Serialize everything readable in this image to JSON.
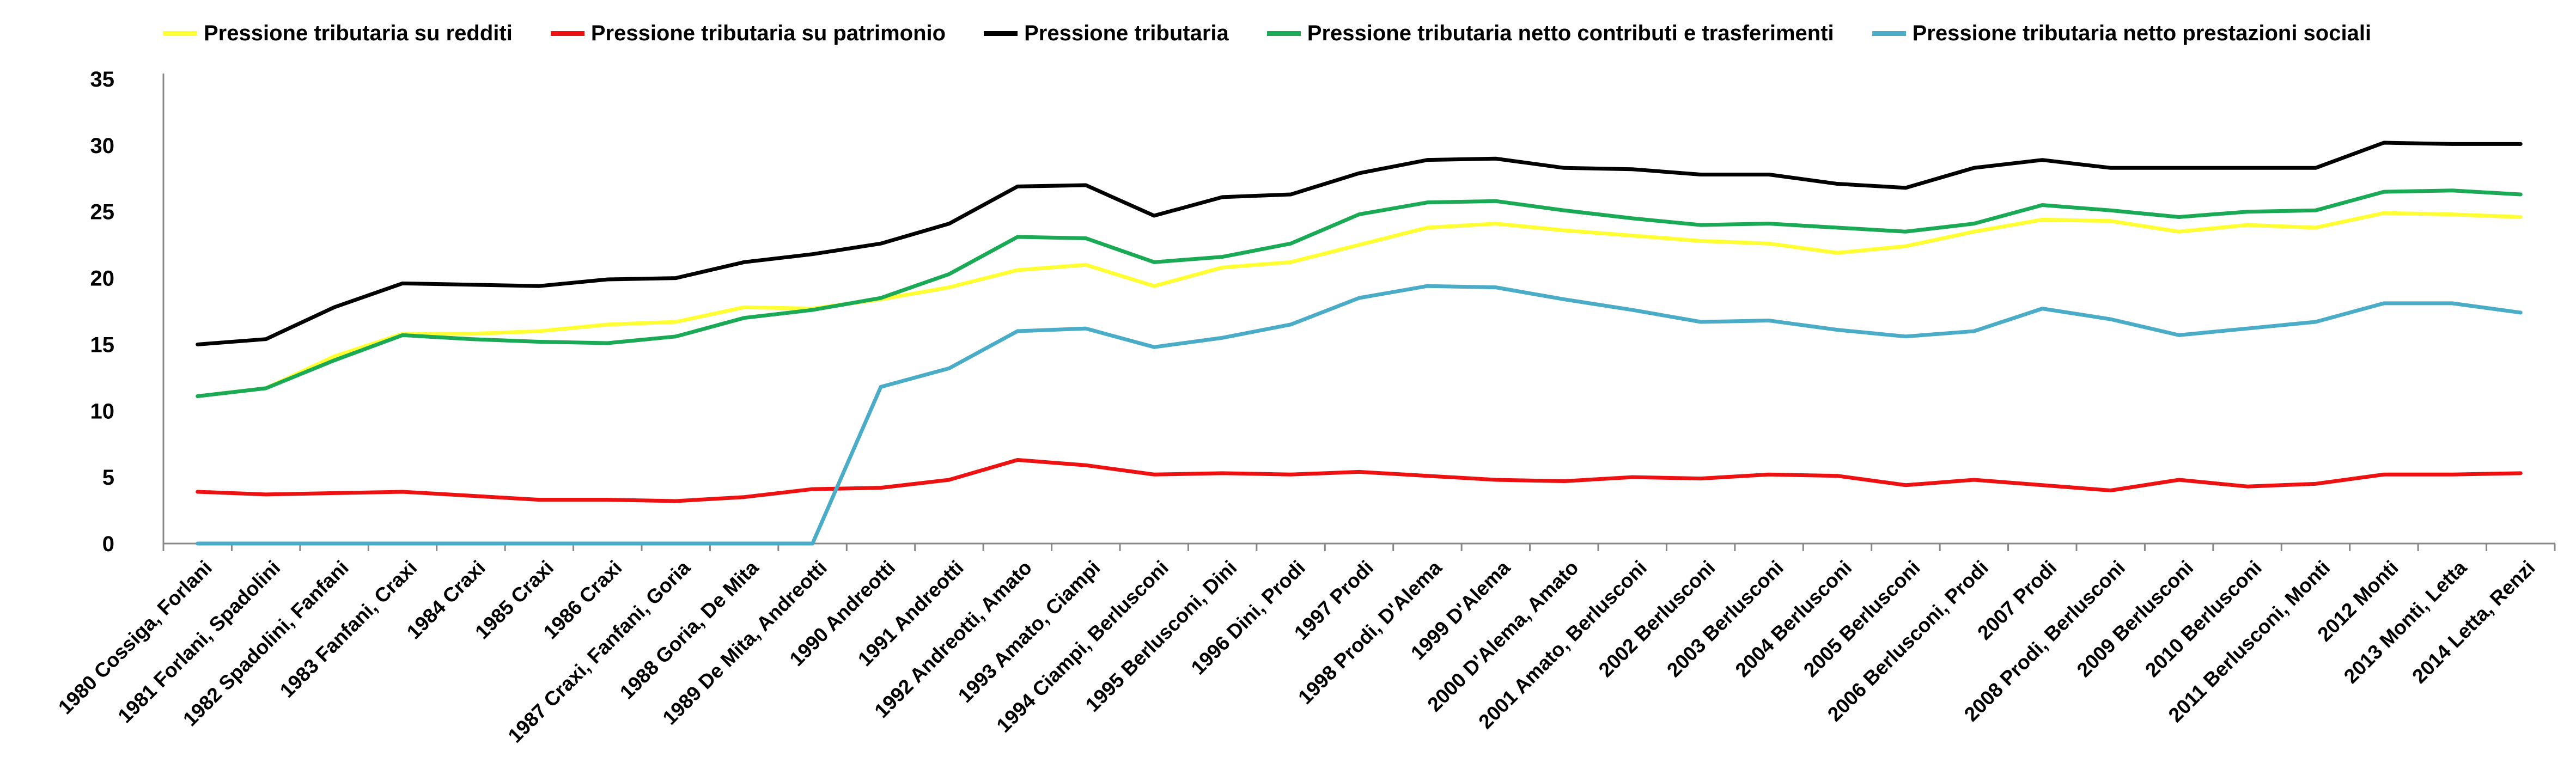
{
  "chart_data": {
    "type": "line",
    "title": "",
    "xlabel": "",
    "ylabel": "",
    "ylim": [
      0,
      35
    ],
    "yticks": [
      0,
      5,
      10,
      15,
      20,
      25,
      30,
      35
    ],
    "grid": false,
    "legend_position": "top",
    "categories": [
      "1980 Cossiga, Forlani",
      "1981 Forlani, Spadolini",
      "1982 Spadolini, Fanfani",
      "1983 Fanfani, Craxi",
      "1984 Craxi",
      "1985 Craxi",
      "1986 Craxi",
      "1987 Craxi, Fanfani, Goria",
      "1988 Goria, De Mita",
      "1989 De Mita, Andreotti",
      "1990 Andreotti",
      "1991 Andreotti",
      "1992 Andreotti, Amato",
      "1993 Amato, Ciampi",
      "1994 Ciampi, Berlusconi",
      "1995 Berlusconi, Dini",
      "1996 Dini, Prodi",
      "1997 Prodi",
      "1998 Prodi, D'Alema",
      "1999 D'Alema",
      "2000 D'Alema, Amato",
      "2001 Amato, Berlusconi",
      "2002 Berlusconi",
      "2003 Berlusconi",
      "2004 Berlusconi",
      "2005 Berlusconi",
      "2006 Berlusconi, Prodi",
      "2007 Prodi",
      "2008 Prodi, Berlusconi",
      "2009 Berlusconi",
      "2010 Berlusconi",
      "2011 Berlusconi, Monti",
      "2012 Monti",
      "2013 Monti, Letta",
      "2014 Letta, Renzi"
    ],
    "series": [
      {
        "name": "Pressione tributaria su redditi",
        "color": "#ffff33",
        "values": [
          11.1,
          11.7,
          14.1,
          15.8,
          15.8,
          16.0,
          16.5,
          16.7,
          17.8,
          17.7,
          18.4,
          19.3,
          20.6,
          21.0,
          19.4,
          20.8,
          21.2,
          22.5,
          23.8,
          24.1,
          23.6,
          23.2,
          22.8,
          22.6,
          21.9,
          22.4,
          23.5,
          24.4,
          24.3,
          23.5,
          24.0,
          23.8,
          24.9,
          24.8,
          24.6
        ]
      },
      {
        "name": "Pressione tributaria su patrimonio",
        "color": "#ee1111",
        "values": [
          3.9,
          3.7,
          3.8,
          3.9,
          3.6,
          3.3,
          3.3,
          3.2,
          3.5,
          4.1,
          4.2,
          4.8,
          6.3,
          5.9,
          5.2,
          5.3,
          5.2,
          5.4,
          5.1,
          4.8,
          4.7,
          5.0,
          4.9,
          5.2,
          5.1,
          4.4,
          4.8,
          4.4,
          4.0,
          4.8,
          4.3,
          4.5,
          5.2,
          5.2,
          5.3
        ]
      },
      {
        "name": "Pressione tributaria",
        "color": "#000000",
        "values": [
          15.0,
          15.4,
          17.8,
          19.6,
          19.5,
          19.4,
          19.9,
          20.0,
          21.2,
          21.8,
          22.6,
          24.1,
          26.9,
          27.0,
          24.7,
          26.1,
          26.3,
          27.9,
          28.9,
          29.0,
          28.3,
          28.2,
          27.8,
          27.8,
          27.1,
          26.8,
          28.3,
          28.9,
          28.3,
          28.3,
          28.3,
          28.3,
          30.2,
          30.1,
          30.1
        ]
      },
      {
        "name": "Pressione tributaria netto contributi e trasferimenti",
        "color": "#1aaa55",
        "values": [
          11.1,
          11.7,
          13.8,
          15.7,
          15.4,
          15.2,
          15.1,
          15.6,
          17.0,
          17.6,
          18.5,
          20.3,
          23.1,
          23.0,
          21.2,
          21.6,
          22.6,
          24.8,
          25.7,
          25.8,
          25.1,
          24.5,
          24.0,
          24.1,
          23.8,
          23.5,
          24.1,
          25.5,
          25.1,
          24.6,
          25.0,
          25.1,
          26.5,
          26.6,
          26.3
        ]
      },
      {
        "name": "Pressione tributaria netto prestazioni sociali",
        "color": "#4aacc6",
        "values": [
          0,
          0,
          0,
          0,
          0,
          0,
          0,
          0,
          0,
          0,
          11.8,
          13.2,
          16.0,
          16.2,
          14.8,
          15.5,
          16.5,
          18.5,
          19.4,
          19.3,
          18.4,
          17.6,
          16.7,
          16.8,
          16.1,
          15.6,
          16.0,
          17.7,
          16.9,
          15.7,
          16.2,
          16.7,
          18.1,
          18.1,
          17.4
        ]
      }
    ]
  }
}
